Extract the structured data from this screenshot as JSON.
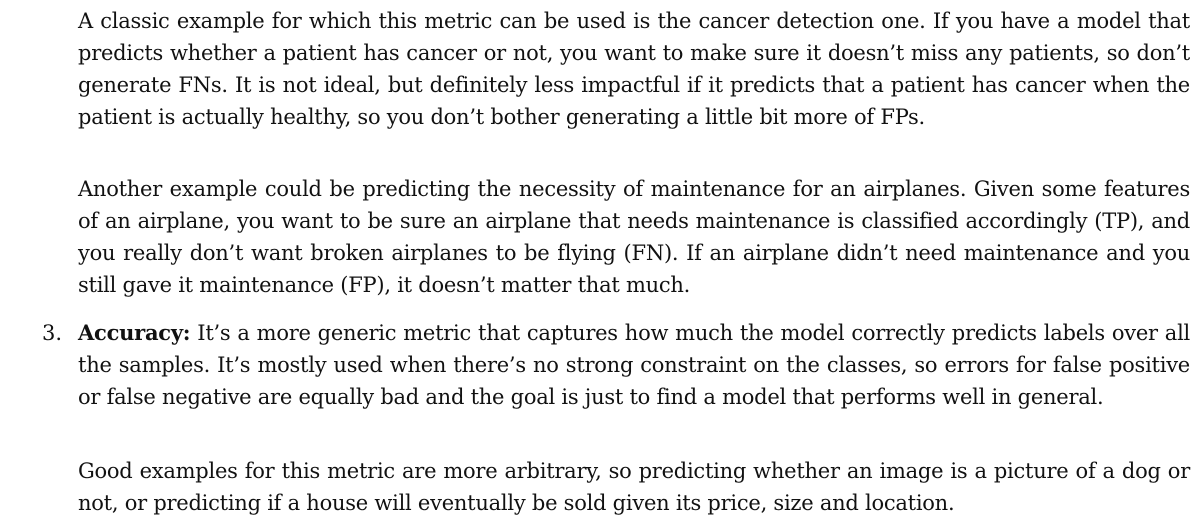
{
  "document": {
    "paragraph_1": "A classic example for which this metric can be used is the cancer detection one. If you have a model that predicts whether a patient has cancer or not, you want to make sure it doesn’t miss any patients, so don’t generate FNs. It is not ideal, but definitely less impactful if it predicts that a patient has cancer when the patient is actually healthy, so you don’t bother generating a little bit more of FPs.",
    "paragraph_2": "Another example could be predicting the necessity of maintenance for an airplanes. Given some features of an airplane, you want to be sure an airplane that needs maintenance is classified accordingly (TP), and you really don’t want broken airplanes to be flying (FN). If an airplane didn’t need maintenance and you still gave it maintenance (FP), it doesn’t matter that much.",
    "list_item_3": {
      "number": "3.",
      "term": "Accuracy:",
      "text": " It’s a more generic metric that captures how much the model correctly predicts labels over all the samples. It’s mostly used when there’s no strong constraint on the classes, so errors for false positive or false negative are equally bad and the goal is just to find a model that performs well in general."
    },
    "paragraph_4": "Good examples for this metric are more arbitrary, so predicting whether an image is a picture of a dog or not, or predicting if a house will eventually be sold given its price, size and location."
  }
}
